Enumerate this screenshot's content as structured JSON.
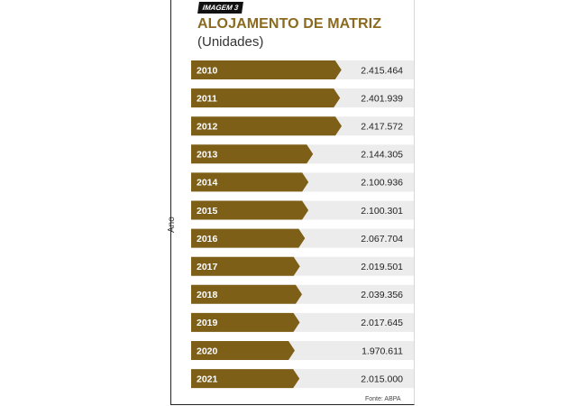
{
  "tag": "IMAGEM 3",
  "source": "Fonte: ABPA",
  "colors": {
    "bar": "#7e5f18",
    "row_bg": "#ececec",
    "title": "#8a6a1e"
  },
  "chart_data": {
    "type": "bar",
    "orientation": "horizontal",
    "title": "ALOJAMENTO DE MATRIZ",
    "subtitle": "(Unidades)",
    "ylabel": "Ano",
    "categories": [
      "2010",
      "2011",
      "2012",
      "2013",
      "2014",
      "2015",
      "2016",
      "2017",
      "2018",
      "2019",
      "2020",
      "2021"
    ],
    "values": [
      2415464,
      2401939,
      2417572,
      2144305,
      2100936,
      2100301,
      2067704,
      2019501,
      2039356,
      2017645,
      1970611,
      2015000
    ],
    "value_labels": [
      "2.415.464",
      "2.401.939",
      "2.417.572",
      "2.144.305",
      "2.100.936",
      "2.100.301",
      "2.067.704",
      "2.019.501",
      "2.039.356",
      "2.017.645",
      "1.970.611",
      "2.015.000"
    ],
    "grid": false,
    "legend": "none"
  }
}
